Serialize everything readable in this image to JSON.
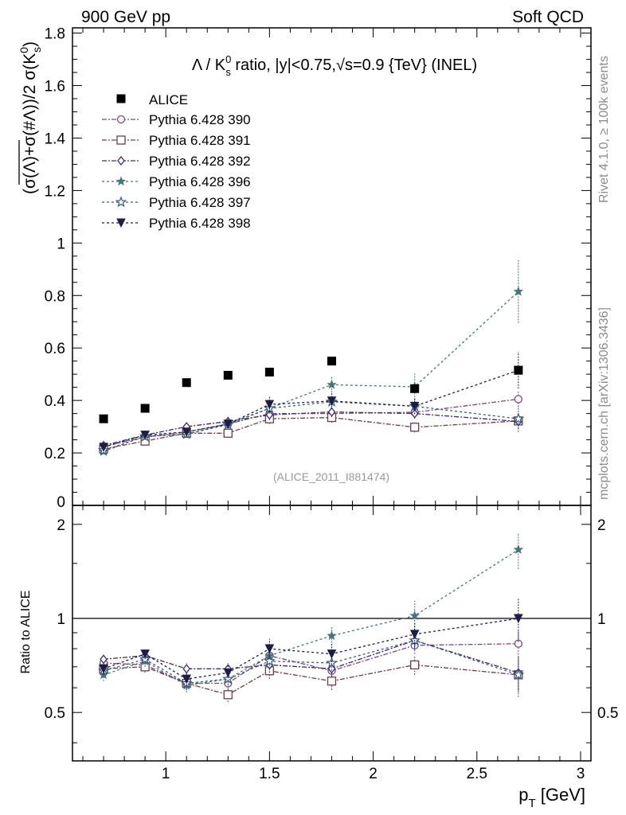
{
  "header": {
    "left": "900 GeV pp",
    "right": "Soft QCD"
  },
  "side_labels": {
    "rivet": "Rivet 4.1.0, ≥ 100k events",
    "mcplots": "mcplots.cern.ch [arXiv:1306.3436]"
  },
  "chart_data": {
    "type": "scatter",
    "title": "Λ / K⁰s ratio, |y|<0.75, √s=0.9 {TeV} (INEL)",
    "title_parts": {
      "pre": "Λ / K",
      "sup": "0",
      "sub": "s",
      "mid": " ratio, |y|<0.75,",
      "sqrt": "√",
      "post": "s=0.9 {TeV} (INEL)"
    },
    "ylabel": "(σ(Λ)+σ(#Λ))/2 σ(K⁰s)",
    "ylabel_parts": {
      "main": "(σ(Λ)+σ(#Λ))/2 σ(K",
      "sup": "0",
      "sub": "s",
      "close": ")"
    },
    "xlabel": "p_T [GeV]",
    "xlabel_parts": {
      "main": "p",
      "sub": "T",
      "unit": " [GeV]"
    },
    "ratio_ylabel": "Ratio to ALICE",
    "watermark": "(ALICE_2011_I881474)",
    "xlim": [
      0.55,
      3.05
    ],
    "ylim": [
      0,
      1.82
    ],
    "ratio_ylim": [
      0.35,
      2.3
    ],
    "x_ticks": [
      1,
      1.5,
      2,
      2.5,
      3
    ],
    "x_tick_labels": [
      "1",
      "1.5",
      "2",
      "2.5",
      "3"
    ],
    "y_ticks": [
      0.2,
      0.4,
      0.6,
      0.8,
      1,
      1.2,
      1.4,
      1.6,
      1.8
    ],
    "y_tick_labels": [
      "0.2",
      "0.4",
      "0.6",
      "0.8",
      "1",
      "1.2",
      "1.4",
      "1.6",
      "1.8"
    ],
    "y_zero_label": "0",
    "ratio_y_ticks": [
      0.5,
      1,
      2
    ],
    "ratio_y_tick_labels": [
      "0.5",
      "1",
      "2"
    ],
    "x": [
      0.7,
      0.9,
      1.1,
      1.3,
      1.5,
      1.8,
      2.2,
      2.7
    ],
    "data": {
      "name": "ALICE",
      "values": [
        0.33,
        0.37,
        0.468,
        0.496,
        0.508,
        0.55,
        0.445,
        0.515
      ]
    },
    "series": [
      {
        "name": "Pythia 6.428 390",
        "color": "#7a4a7e",
        "marker": "circle-open",
        "dash": "6,2,2,2",
        "values": [
          0.225,
          0.26,
          0.28,
          0.31,
          0.35,
          0.35,
          0.355,
          0.405
        ],
        "errors": [
          0.01,
          0.01,
          0.01,
          0.015,
          0.02,
          0.02,
          0.02,
          0.03
        ],
        "ratio": [
          0.72,
          0.71,
          0.62,
          0.62,
          0.76,
          0.68,
          0.82,
          0.83
        ],
        "ratio_errors": [
          0.03,
          0.03,
          0.03,
          0.03,
          0.04,
          0.04,
          0.05,
          0.08
        ]
      },
      {
        "name": "Pythia 6.428 391",
        "color": "#6b3d4f",
        "marker": "square-open",
        "dash": "6,2,2,2",
        "values": [
          0.215,
          0.245,
          0.275,
          0.275,
          0.33,
          0.335,
          0.298,
          0.322
        ],
        "errors": [
          0.01,
          0.01,
          0.01,
          0.015,
          0.02,
          0.02,
          0.02,
          0.03
        ],
        "ratio": [
          0.69,
          0.7,
          0.62,
          0.57,
          0.68,
          0.63,
          0.71,
          0.66
        ],
        "ratio_errors": [
          0.03,
          0.03,
          0.03,
          0.03,
          0.04,
          0.04,
          0.05,
          0.08
        ]
      },
      {
        "name": "Pythia 6.428 392",
        "color": "#3f2a70",
        "marker": "diamond-open",
        "dash": "6,2,2,2",
        "values": [
          0.228,
          0.268,
          0.3,
          0.32,
          0.345,
          0.356,
          0.35,
          0.32
        ],
        "errors": [
          0.01,
          0.01,
          0.01,
          0.015,
          0.02,
          0.02,
          0.02,
          0.03
        ],
        "ratio": [
          0.74,
          0.76,
          0.69,
          0.69,
          0.71,
          0.69,
          0.85,
          0.67
        ],
        "ratio_errors": [
          0.03,
          0.03,
          0.03,
          0.03,
          0.04,
          0.04,
          0.05,
          0.08
        ]
      },
      {
        "name": "Pythia 6.428 396",
        "color": "#4a7478",
        "marker": "star-filled",
        "dash": "3,3",
        "values": [
          0.205,
          0.265,
          0.27,
          0.312,
          0.37,
          0.46,
          0.452,
          0.815
        ],
        "errors": [
          0.01,
          0.01,
          0.01,
          0.015,
          0.02,
          0.03,
          0.05,
          0.12
        ],
        "ratio": [
          0.66,
          0.73,
          0.61,
          0.64,
          0.76,
          0.88,
          1.02,
          1.66
        ],
        "ratio_errors": [
          0.03,
          0.03,
          0.03,
          0.04,
          0.05,
          0.06,
          0.12,
          0.22
        ]
      },
      {
        "name": "Pythia 6.428 397",
        "color": "#3b5a7a",
        "marker": "star-open",
        "dash": "3,3",
        "values": [
          0.21,
          0.262,
          0.272,
          0.308,
          0.37,
          0.395,
          0.378,
          0.33
        ],
        "errors": [
          0.01,
          0.01,
          0.01,
          0.015,
          0.02,
          0.02,
          0.03,
          0.05
        ],
        "ratio": [
          0.68,
          0.74,
          0.62,
          0.64,
          0.73,
          0.72,
          0.85,
          0.66
        ],
        "ratio_errors": [
          0.03,
          0.03,
          0.03,
          0.03,
          0.04,
          0.04,
          0.06,
          0.1
        ]
      },
      {
        "name": "Pythia 6.428 398",
        "color": "#1e1e45",
        "marker": "triangle-down-filled",
        "dash": "3,3",
        "values": [
          0.222,
          0.268,
          0.28,
          0.31,
          0.385,
          0.398,
          0.378,
          0.515
        ],
        "errors": [
          0.01,
          0.01,
          0.01,
          0.015,
          0.03,
          0.03,
          0.03,
          0.07
        ],
        "ratio": [
          0.69,
          0.77,
          0.64,
          0.67,
          0.8,
          0.77,
          0.89,
          1.0
        ],
        "ratio_errors": [
          0.03,
          0.03,
          0.03,
          0.04,
          0.06,
          0.06,
          0.08,
          0.16
        ]
      }
    ]
  }
}
